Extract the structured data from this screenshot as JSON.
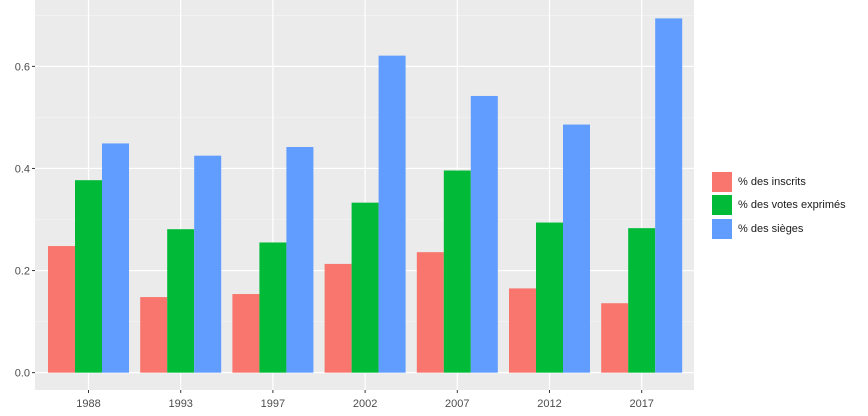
{
  "chart_data": {
    "type": "bar",
    "title": "",
    "xlabel": "",
    "ylabel": "",
    "categories": [
      "1988",
      "1993",
      "1997",
      "2002",
      "2007",
      "2012",
      "2017"
    ],
    "series": [
      {
        "name": "% des inscrits",
        "color": "#F8766D",
        "values": [
          0.248,
          0.148,
          0.154,
          0.213,
          0.236,
          0.165,
          0.136
        ]
      },
      {
        "name": "% des votes exprimés",
        "color": "#00BA38",
        "values": [
          0.377,
          0.281,
          0.255,
          0.333,
          0.396,
          0.294,
          0.283
        ]
      },
      {
        "name": "% des sièges",
        "color": "#619CFF",
        "values": [
          0.449,
          0.425,
          0.442,
          0.621,
          0.542,
          0.486,
          0.694
        ]
      }
    ],
    "ylim": [
      -0.034,
      0.73
    ],
    "yticks": [
      "0.0",
      "0.2",
      "0.4",
      "0.6"
    ],
    "grid": true,
    "legend_position": "right",
    "panel_background": "#EBEBEB"
  }
}
